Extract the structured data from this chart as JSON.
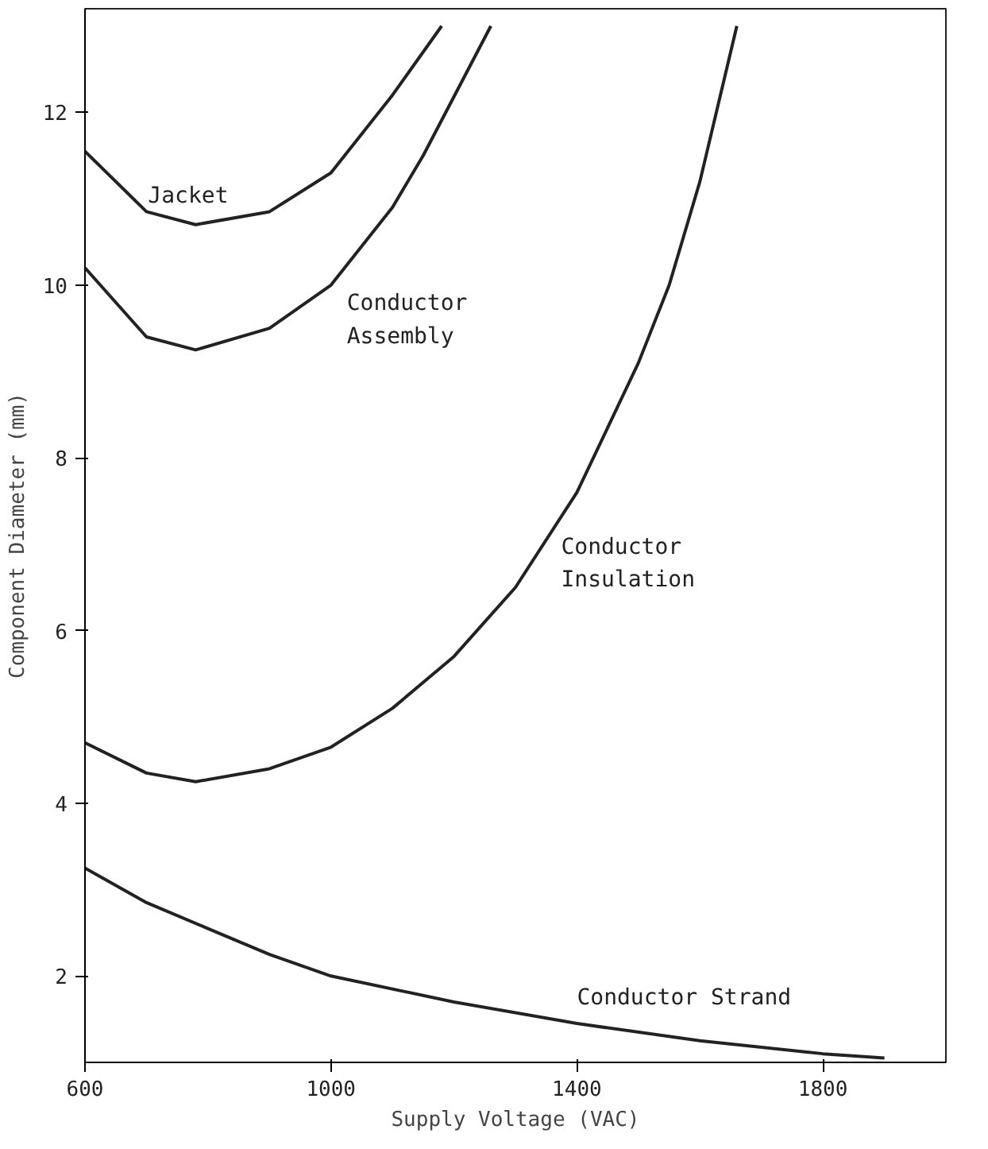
{
  "chart_data": {
    "type": "line",
    "xlabel": "Supply Voltage (VAC)",
    "ylabel": "Component Diameter (mm)",
    "xlim": [
      600,
      2000
    ],
    "ylim": [
      1,
      13.2
    ],
    "xticks": [
      600,
      1000,
      1400,
      1800
    ],
    "yticks": [
      2,
      4,
      6,
      8,
      10,
      12
    ],
    "grid": false,
    "legend": false,
    "series": [
      {
        "name": "Jacket",
        "color": "#222222",
        "x": [
          600,
          700,
          780,
          900,
          1000,
          1100,
          1180
        ],
        "values": [
          11.55,
          10.85,
          10.7,
          10.85,
          11.3,
          12.2,
          13.0
        ]
      },
      {
        "name": "Conductor\nAssembly",
        "color": "#222222",
        "x": [
          600,
          700,
          780,
          900,
          1000,
          1100,
          1150,
          1260
        ],
        "values": [
          10.2,
          9.4,
          9.25,
          9.5,
          10.0,
          10.9,
          11.5,
          13.0
        ]
      },
      {
        "name": "Conductor\nInsulation",
        "color": "#222222",
        "x": [
          600,
          700,
          780,
          900,
          1000,
          1100,
          1200,
          1300,
          1400,
          1500,
          1550,
          1600,
          1660
        ],
        "values": [
          4.7,
          4.35,
          4.25,
          4.4,
          4.65,
          5.1,
          5.7,
          6.5,
          7.6,
          9.1,
          10.0,
          11.2,
          13.0
        ]
      },
      {
        "name": "Conductor Strand",
        "color": "#222222",
        "x": [
          600,
          700,
          800,
          900,
          1000,
          1200,
          1400,
          1600,
          1800,
          1900
        ],
        "values": [
          3.25,
          2.85,
          2.55,
          2.25,
          2.0,
          1.7,
          1.45,
          1.25,
          1.1,
          1.05
        ]
      }
    ]
  }
}
